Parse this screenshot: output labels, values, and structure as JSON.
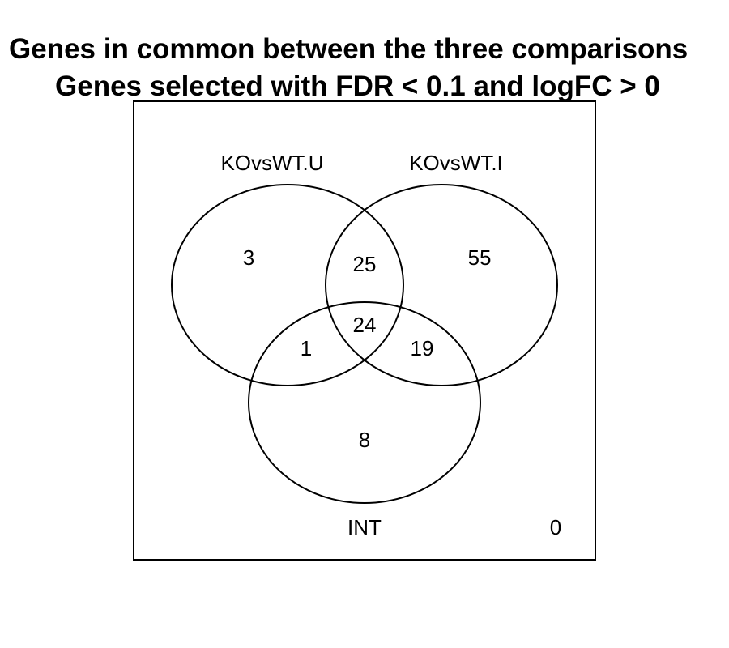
{
  "title": {
    "line1": "Genes in common between the three comparisons",
    "line2": "Genes selected with FDR < 0.1 and logFC > 0"
  },
  "sets": {
    "a": "KOvsWT.U",
    "b": "KOvsWT.I",
    "c": "INT"
  },
  "counts": {
    "a_only": "3",
    "b_only": "55",
    "c_only": "8",
    "ab": "25",
    "ac": "1",
    "bc": "19",
    "abc": "24",
    "outside": "0"
  },
  "colors": {
    "stroke": "#000000",
    "background": "#ffffff"
  }
}
